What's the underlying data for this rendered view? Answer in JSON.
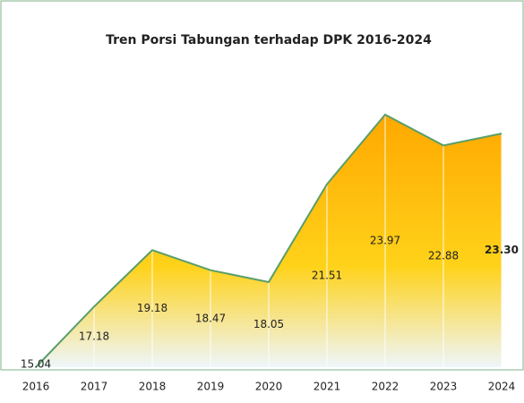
{
  "chart_data": {
    "type": "area",
    "title": "Tren Porsi Tabungan terhadap DPK 2016-2024",
    "categories": [
      "2016",
      "2017",
      "2018",
      "2019",
      "2020",
      "2021",
      "2022",
      "2023",
      "2024"
    ],
    "values": [
      15.04,
      17.18,
      19.18,
      18.47,
      18.05,
      21.51,
      23.97,
      22.88,
      23.3
    ],
    "value_labels": [
      "15.04",
      "17.18",
      "19.18",
      "18.47",
      "18.05",
      "21.51",
      "23.97",
      "22.88",
      "23.30"
    ],
    "color": "#ffc400",
    "line_color": "#5a9e6a"
  }
}
